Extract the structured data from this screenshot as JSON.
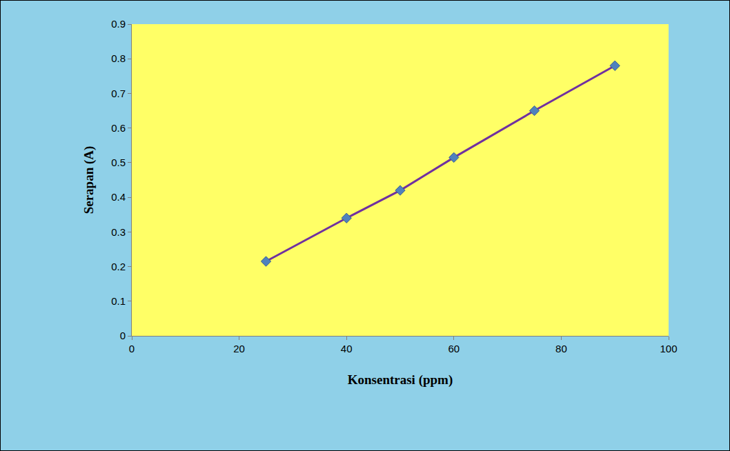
{
  "chart_data": {
    "type": "line",
    "x_label": "Konsentrasi (ppm)",
    "y_label": "Serapan (A)",
    "x": [
      25,
      40,
      50,
      60,
      75,
      90
    ],
    "series": [
      {
        "color": "#7030a0",
        "marker": "diamond",
        "line_style": "solid",
        "values": [
          0.215,
          0.34,
          0.42,
          0.515,
          0.65,
          0.78
        ]
      }
    ],
    "xlim": [
      0,
      100
    ],
    "xticks": [
      0,
      20,
      40,
      60,
      80,
      100
    ],
    "ylim": [
      0,
      0.9
    ],
    "yticks": [
      0,
      0.1,
      0.2,
      0.3,
      0.4,
      0.5,
      0.6,
      0.7,
      0.8,
      0.9
    ],
    "grid": false
  }
}
